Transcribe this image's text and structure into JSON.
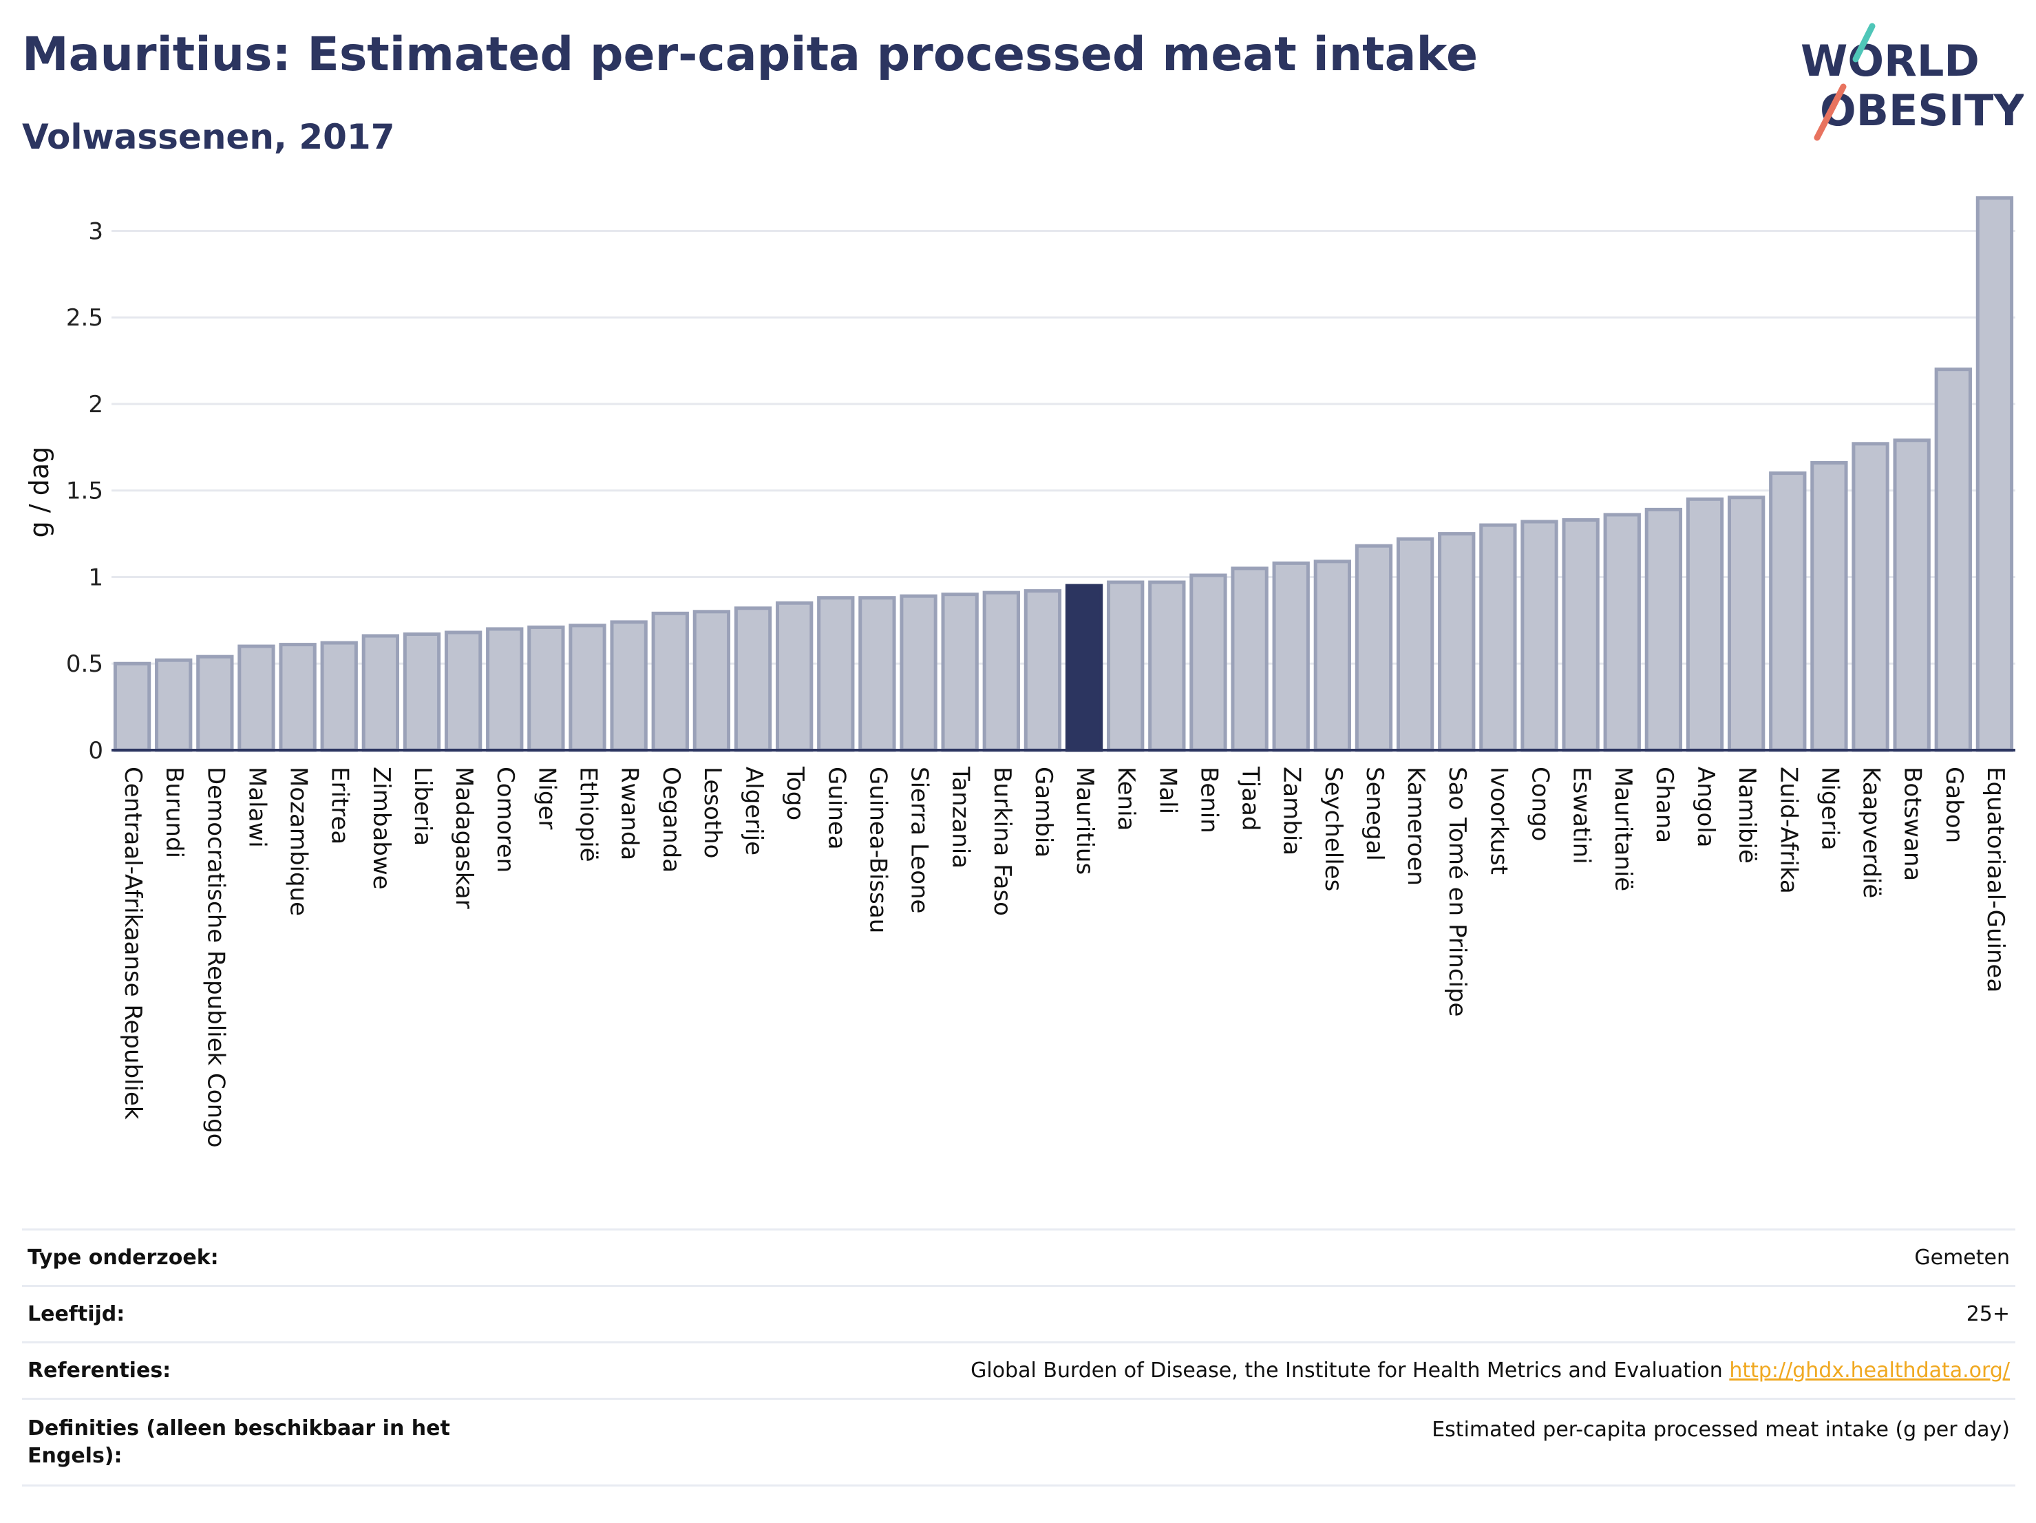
{
  "header": {
    "title": "Mauritius: Estimated per-capita processed meat intake",
    "subtitle": "Volwassenen, 2017"
  },
  "logo": {
    "line1": "WORLD",
    "line2": "OBESITY"
  },
  "chart_data": {
    "type": "bar",
    "ylabel": "g / dag",
    "ylim": [
      0,
      3.3
    ],
    "yticks": [
      0,
      0.5,
      1,
      1.5,
      2,
      2.5,
      3
    ],
    "ytick_labels": [
      "0",
      "0.5",
      "1",
      "1.5",
      "2",
      "2.5",
      "3"
    ],
    "grid": true,
    "highlight": "Mauritius",
    "colors": {
      "bar": "#bfc3d0",
      "bar_edge": "#9aa1b8",
      "highlight": "#2c3560",
      "grid": "#e6e8ee"
    },
    "categories": [
      "Centraal-Afrikaanse Republiek",
      "Burundi",
      "Democratische Republiek Congo",
      "Malawi",
      "Mozambique",
      "Eritrea",
      "Zimbabwe",
      "Liberia",
      "Madagaskar",
      "Comoren",
      "Niger",
      "Ethiopië",
      "Rwanda",
      "Oeganda",
      "Lesotho",
      "Algerije",
      "Togo",
      "Guinea",
      "Guinea-Bissau",
      "Sierra Leone",
      "Tanzania",
      "Burkina Faso",
      "Gambia",
      "Mauritius",
      "Kenia",
      "Mali",
      "Benin",
      "Tjaad",
      "Zambia",
      "Seychelles",
      "Senegal",
      "Kameroen",
      "Sao Tomé en Principe",
      "Ivoorkust",
      "Congo",
      "Eswatini",
      "Mauritanië",
      "Ghana",
      "Angola",
      "Namibië",
      "Zuid-Afrika",
      "Nigeria",
      "Kaapverdië",
      "Botswana",
      "Gabon",
      "Equatoriaal-Guinea"
    ],
    "values": [
      0.5,
      0.52,
      0.54,
      0.6,
      0.61,
      0.62,
      0.66,
      0.67,
      0.68,
      0.7,
      0.71,
      0.72,
      0.74,
      0.79,
      0.8,
      0.82,
      0.85,
      0.88,
      0.88,
      0.89,
      0.9,
      0.91,
      0.92,
      0.95,
      0.97,
      0.97,
      1.01,
      1.05,
      1.08,
      1.09,
      1.18,
      1.22,
      1.25,
      1.3,
      1.32,
      1.33,
      1.36,
      1.39,
      1.45,
      1.46,
      1.6,
      1.66,
      1.77,
      1.79,
      2.2,
      3.19
    ]
  },
  "info": {
    "rows": [
      {
        "label": "Type onderzoek:",
        "value": "Gemeten"
      },
      {
        "label": "Leeftijd:",
        "value": "25+"
      },
      {
        "label": "Referenties:",
        "value": "Global Burden of Disease, the Institute for Health Metrics and Evaluation",
        "link": "http://ghdx.healthdata.org/"
      },
      {
        "label": "Definities (alleen beschikbaar in het Engels):",
        "value": "Estimated per-capita processed meat intake (g per day)"
      }
    ]
  }
}
